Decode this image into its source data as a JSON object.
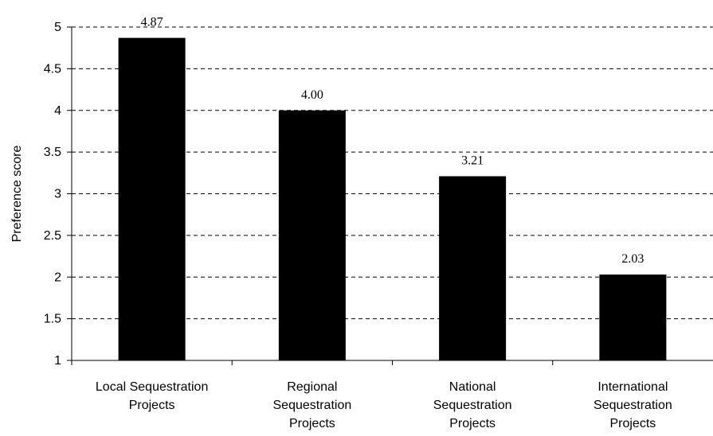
{
  "chart_data": {
    "type": "bar",
    "title": "",
    "xlabel": "",
    "ylabel": "Preference score",
    "ylim": [
      1,
      5
    ],
    "yticks": [
      "1",
      "1.5",
      "2",
      "2.5",
      "3",
      "3.5",
      "4",
      "4.5",
      "5"
    ],
    "grid": true,
    "categories": [
      [
        "Local Sequestration",
        "Projects"
      ],
      [
        "Regional",
        "Sequestration",
        "Projects"
      ],
      [
        "National",
        "Sequestration",
        "Projects"
      ],
      [
        "International",
        "Sequestration",
        "Projects"
      ]
    ],
    "values": [
      4.87,
      4.0,
      3.21,
      2.03
    ],
    "data_labels": [
      "4.87",
      "4.00",
      "3.21",
      "2.03"
    ],
    "bar_color": "#000000",
    "grid_color": "#000000"
  }
}
